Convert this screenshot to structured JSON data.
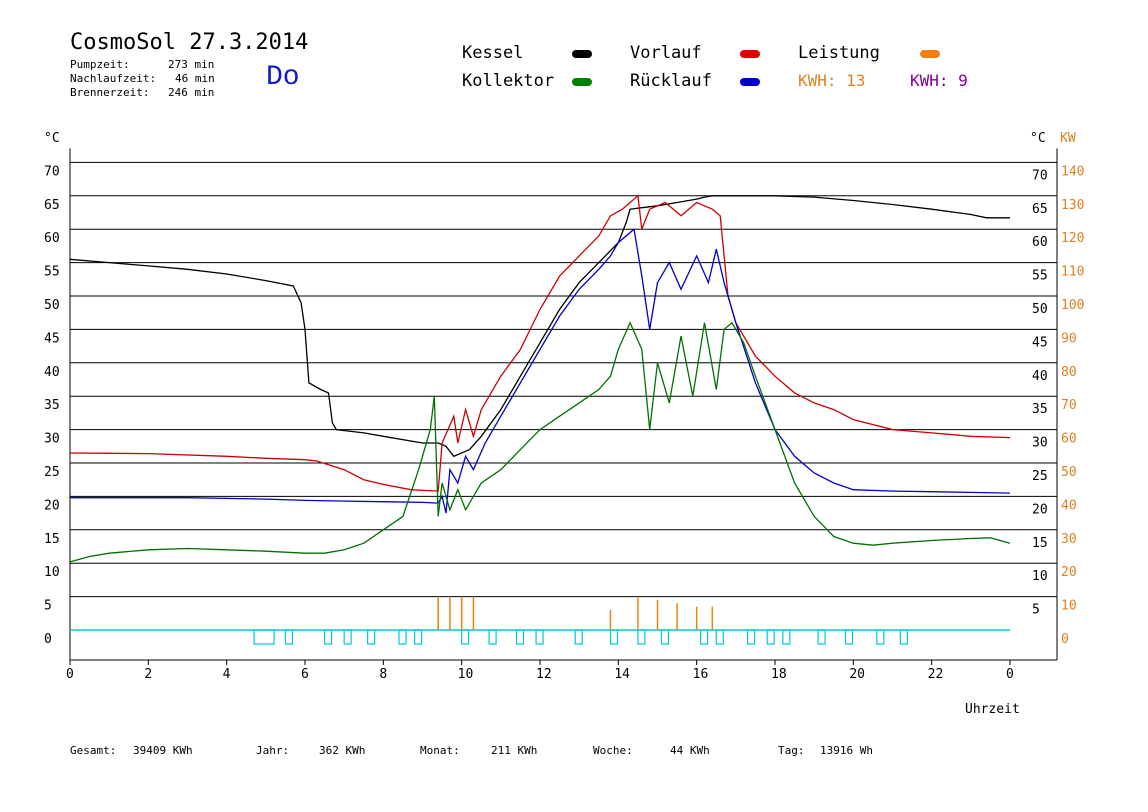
{
  "header": {
    "title": "CosmoSol 27.3.2014",
    "day": "Do",
    "stats": [
      {
        "label": "Pumpzeit:",
        "value": "273 min"
      },
      {
        "label": "Nachlaufzeit:",
        "value": "46 min"
      },
      {
        "label": "Brennerzeit:",
        "value": "246 min"
      }
    ]
  },
  "legend": {
    "kessel": {
      "label": "Kessel",
      "color": "#000000"
    },
    "kollektor": {
      "label": "Kollektor",
      "color": "#008000"
    },
    "vorlauf": {
      "label": "Vorlauf",
      "color": "#e00000"
    },
    "ruecklauf": {
      "label": "Rücklauf",
      "color": "#0000d0"
    },
    "leistung": {
      "label": "Leistung",
      "color": "#f08010"
    },
    "kwh_orange": "KWH: 13",
    "kwh_purple": "KWH: 9",
    "purple_color": "#8000a0"
  },
  "footer": [
    {
      "label": "Gesamt:",
      "value": "39409 KWh"
    },
    {
      "label": "Jahr:",
      "value": "362 KWh"
    },
    {
      "label": "Monat:",
      "value": "211 KWh"
    },
    {
      "label": "Woche:",
      "value": "44 KWh"
    },
    {
      "label": "Tag:",
      "value": "13916 Wh"
    }
  ],
  "chart_data": {
    "type": "line",
    "title": "CosmoSol 27.3.2014",
    "xlabel": "Uhrzeit",
    "ylabel_left": "°C",
    "ylabel_right": "°C",
    "ylabel_right2": "KW",
    "xlim": [
      0,
      24
    ],
    "ylim": [
      0,
      70
    ],
    "x_ticks": [
      "0",
      "2",
      "4",
      "6",
      "8",
      "10",
      "12",
      "14",
      "16",
      "18",
      "20",
      "22",
      "0"
    ],
    "y_ticks": [
      "0",
      "5",
      "10",
      "15",
      "20",
      "25",
      "30",
      "35",
      "40",
      "45",
      "50",
      "55",
      "60",
      "65",
      "70"
    ],
    "kw_ticks": [
      "0",
      "10",
      "20",
      "30",
      "40",
      "50",
      "60",
      "70",
      "80",
      "90",
      "100",
      "110",
      "120",
      "130",
      "140"
    ],
    "grid": true,
    "series": [
      {
        "name": "Kessel",
        "color": "#000000",
        "points": [
          [
            0,
            55.5
          ],
          [
            1,
            55
          ],
          [
            2,
            54.5
          ],
          [
            3,
            54
          ],
          [
            4,
            53.3
          ],
          [
            5,
            52.3
          ],
          [
            5.7,
            51.5
          ],
          [
            5.9,
            49
          ],
          [
            6,
            45
          ],
          [
            6.1,
            37
          ],
          [
            6.4,
            36
          ],
          [
            6.6,
            35.5
          ],
          [
            6.7,
            31
          ],
          [
            6.8,
            30
          ],
          [
            7.5,
            29.5
          ],
          [
            8,
            29
          ],
          [
            9,
            28
          ],
          [
            9.4,
            28
          ],
          [
            9.6,
            27.5
          ],
          [
            9.8,
            26
          ],
          [
            10.2,
            27
          ],
          [
            10.5,
            29
          ],
          [
            11,
            33
          ],
          [
            11.5,
            38
          ],
          [
            12,
            43
          ],
          [
            12.5,
            48
          ],
          [
            13,
            52
          ],
          [
            13.5,
            55
          ],
          [
            14,
            58
          ],
          [
            14.2,
            61
          ],
          [
            14.3,
            63
          ],
          [
            15,
            63.5
          ],
          [
            15.5,
            64
          ],
          [
            16,
            64.5
          ],
          [
            16.2,
            64.8
          ],
          [
            16.4,
            65
          ],
          [
            17,
            65
          ],
          [
            18,
            65
          ],
          [
            19,
            64.8
          ],
          [
            20,
            64.3
          ],
          [
            21,
            63.7
          ],
          [
            22,
            63
          ],
          [
            23,
            62.2
          ],
          [
            23.4,
            61.7
          ],
          [
            24,
            61.7
          ]
        ]
      },
      {
        "name": "Vorlauf",
        "color": "#cc0000",
        "points": [
          [
            0,
            26.5
          ],
          [
            2,
            26.4
          ],
          [
            4,
            26
          ],
          [
            5,
            25.7
          ],
          [
            6,
            25.5
          ],
          [
            6.3,
            25.3
          ],
          [
            7,
            24
          ],
          [
            7.5,
            22.5
          ],
          [
            8,
            21.8
          ],
          [
            8.7,
            21
          ],
          [
            9.4,
            20.8
          ],
          [
            9.5,
            28
          ],
          [
            9.8,
            32
          ],
          [
            9.9,
            28
          ],
          [
            10.1,
            33
          ],
          [
            10.3,
            29
          ],
          [
            10.5,
            33
          ],
          [
            11,
            38
          ],
          [
            11.5,
            42
          ],
          [
            12,
            48
          ],
          [
            12.5,
            53
          ],
          [
            13,
            56
          ],
          [
            13.5,
            59
          ],
          [
            13.8,
            62
          ],
          [
            14.1,
            63
          ],
          [
            14.3,
            64
          ],
          [
            14.5,
            65
          ],
          [
            14.6,
            60
          ],
          [
            14.8,
            63
          ],
          [
            15.2,
            64
          ],
          [
            15.6,
            62
          ],
          [
            16,
            64
          ],
          [
            16.4,
            63
          ],
          [
            16.6,
            62
          ],
          [
            16.8,
            50
          ],
          [
            17,
            46
          ],
          [
            17.5,
            41
          ],
          [
            18,
            38
          ],
          [
            18.5,
            35.5
          ],
          [
            19,
            34
          ],
          [
            19.5,
            33
          ],
          [
            20,
            31.5
          ],
          [
            21,
            30
          ],
          [
            22,
            29.5
          ],
          [
            23,
            29
          ],
          [
            24,
            28.8
          ]
        ]
      },
      {
        "name": "Rücklauf",
        "color": "#0000c8",
        "points": [
          [
            0,
            19.8
          ],
          [
            1,
            19.8
          ],
          [
            2,
            19.8
          ],
          [
            3,
            19.8
          ],
          [
            4,
            19.7
          ],
          [
            5,
            19.6
          ],
          [
            6,
            19.4
          ],
          [
            7,
            19.3
          ],
          [
            8,
            19.2
          ],
          [
            9,
            19.1
          ],
          [
            9.4,
            19
          ],
          [
            9.5,
            20
          ],
          [
            9.6,
            17.5
          ],
          [
            9.7,
            24
          ],
          [
            9.9,
            22
          ],
          [
            10.1,
            26
          ],
          [
            10.3,
            24
          ],
          [
            10.6,
            28
          ],
          [
            11,
            32
          ],
          [
            11.5,
            37
          ],
          [
            12,
            42
          ],
          [
            12.5,
            47
          ],
          [
            13,
            51
          ],
          [
            13.5,
            54
          ],
          [
            13.8,
            56
          ],
          [
            14,
            58
          ],
          [
            14.4,
            60
          ],
          [
            14.6,
            53
          ],
          [
            14.8,
            45
          ],
          [
            15,
            52
          ],
          [
            15.3,
            55
          ],
          [
            15.6,
            51
          ],
          [
            16,
            56
          ],
          [
            16.3,
            52
          ],
          [
            16.5,
            57
          ],
          [
            16.7,
            52
          ],
          [
            17,
            46
          ],
          [
            17.5,
            37
          ],
          [
            18,
            30
          ],
          [
            18.5,
            26
          ],
          [
            19,
            23.5
          ],
          [
            19.5,
            22
          ],
          [
            20,
            21
          ],
          [
            21,
            20.8
          ],
          [
            22,
            20.7
          ],
          [
            23,
            20.6
          ],
          [
            24,
            20.5
          ]
        ]
      },
      {
        "name": "Kollektor",
        "color": "#007000",
        "points": [
          [
            0,
            10.2
          ],
          [
            0.5,
            11
          ],
          [
            1,
            11.5
          ],
          [
            2,
            12
          ],
          [
            3,
            12.2
          ],
          [
            4,
            12
          ],
          [
            5,
            11.8
          ],
          [
            6,
            11.5
          ],
          [
            6.5,
            11.5
          ],
          [
            7,
            12
          ],
          [
            7.5,
            13
          ],
          [
            8,
            15
          ],
          [
            8.5,
            17
          ],
          [
            8.9,
            24
          ],
          [
            9.2,
            30
          ],
          [
            9.3,
            35
          ],
          [
            9.4,
            17
          ],
          [
            9.5,
            22
          ],
          [
            9.7,
            18
          ],
          [
            9.9,
            21
          ],
          [
            10.1,
            18
          ],
          [
            10.3,
            20
          ],
          [
            10.5,
            22
          ],
          [
            11,
            24
          ],
          [
            11.5,
            27
          ],
          [
            12,
            30
          ],
          [
            12.5,
            32
          ],
          [
            13,
            34
          ],
          [
            13.5,
            36
          ],
          [
            13.8,
            38
          ],
          [
            14,
            42
          ],
          [
            14.3,
            46
          ],
          [
            14.6,
            42
          ],
          [
            14.8,
            30
          ],
          [
            15,
            40
          ],
          [
            15.3,
            34
          ],
          [
            15.6,
            44
          ],
          [
            15.9,
            35
          ],
          [
            16.2,
            46
          ],
          [
            16.5,
            36
          ],
          [
            16.7,
            45
          ],
          [
            16.9,
            46
          ],
          [
            17.2,
            43
          ],
          [
            17.5,
            38
          ],
          [
            18,
            30
          ],
          [
            18.5,
            22
          ],
          [
            19,
            17
          ],
          [
            19.5,
            14
          ],
          [
            20,
            13
          ],
          [
            20.5,
            12.7
          ],
          [
            21,
            13
          ],
          [
            22,
            13.4
          ],
          [
            23,
            13.7
          ],
          [
            23.5,
            13.8
          ],
          [
            24,
            13
          ]
        ]
      }
    ],
    "leistung_kw_markers": [
      {
        "x": 9.4,
        "kw": 10
      },
      {
        "x": 9.7,
        "kw": 10
      },
      {
        "x": 10,
        "kw": 10
      },
      {
        "x": 10.3,
        "kw": 10
      },
      {
        "x": 13.8,
        "kw": 6
      },
      {
        "x": 14.5,
        "kw": 10
      },
      {
        "x": 15.0,
        "kw": 9
      },
      {
        "x": 15.5,
        "kw": 8
      },
      {
        "x": 16.0,
        "kw": 7
      },
      {
        "x": 16.4,
        "kw": 7
      }
    ],
    "pump_blocks": [
      4.7,
      5.5,
      6.5,
      7.0,
      7.6,
      8.4,
      8.8,
      10.0,
      10.7,
      11.4,
      11.9,
      12.9,
      13.8,
      14.5,
      15.1,
      16.1,
      16.5,
      17.3,
      17.8,
      18.2,
      19.1,
      19.8,
      20.6,
      21.2
    ]
  }
}
